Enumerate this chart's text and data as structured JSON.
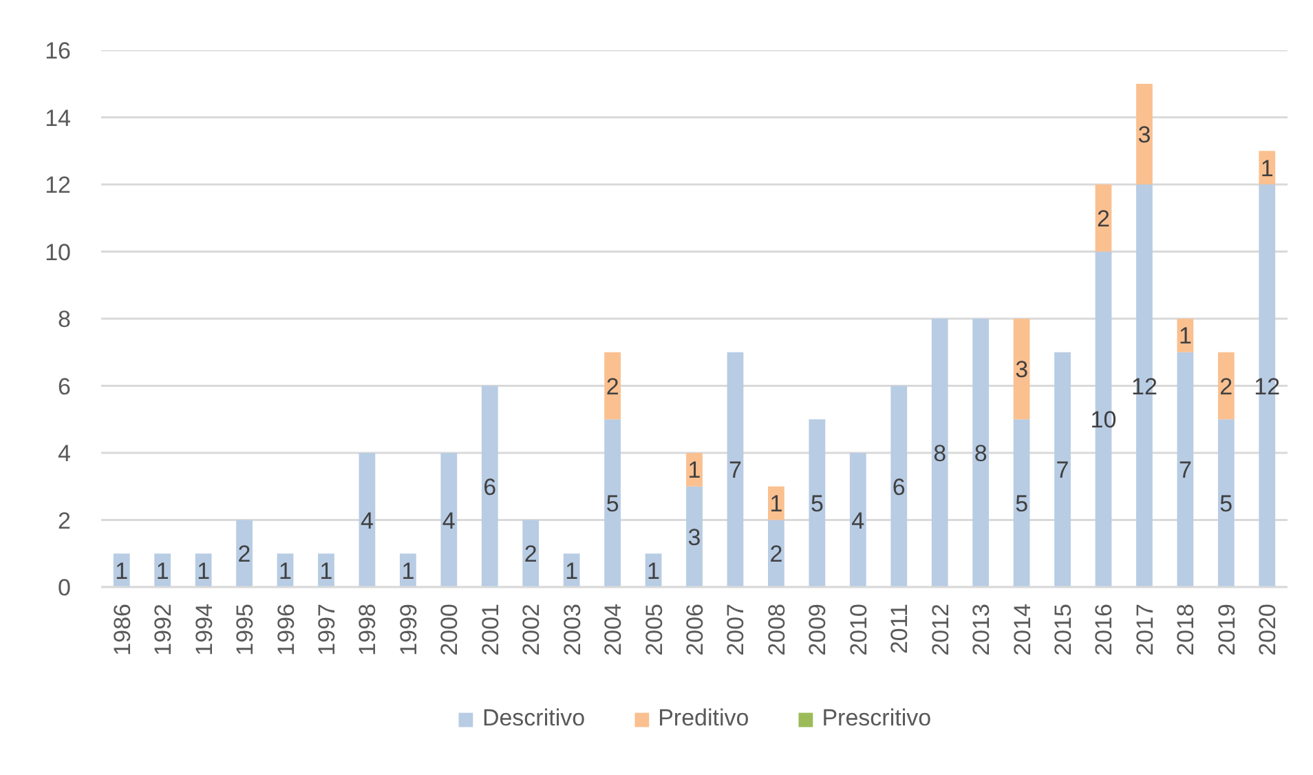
{
  "chart_data": {
    "type": "bar",
    "stacked": true,
    "categories": [
      "1986",
      "1992",
      "1994",
      "1995",
      "1996",
      "1997",
      "1998",
      "1999",
      "2000",
      "2001",
      "2002",
      "2003",
      "2004",
      "2005",
      "2006",
      "2007",
      "2008",
      "2009",
      "2010",
      "2011",
      "2012",
      "2013",
      "2014",
      "2015",
      "2016",
      "2017",
      "2018",
      "2019",
      "2020"
    ],
    "series": [
      {
        "name": "Descritivo",
        "color": "#b8cce4",
        "values": [
          1,
          1,
          1,
          2,
          1,
          1,
          4,
          1,
          4,
          6,
          2,
          1,
          5,
          1,
          3,
          7,
          2,
          5,
          4,
          6,
          8,
          8,
          5,
          7,
          10,
          12,
          7,
          5,
          12
        ]
      },
      {
        "name": "Preditivo",
        "color": "#fac090",
        "values": [
          null,
          null,
          null,
          null,
          null,
          null,
          null,
          null,
          null,
          null,
          null,
          null,
          2,
          null,
          1,
          null,
          1,
          null,
          null,
          null,
          null,
          null,
          3,
          null,
          2,
          3,
          1,
          2,
          1
        ]
      },
      {
        "name": "Prescritivo",
        "color": "#9bbb59",
        "values": [
          null,
          null,
          null,
          null,
          null,
          null,
          null,
          null,
          null,
          null,
          null,
          null,
          null,
          null,
          null,
          null,
          null,
          null,
          null,
          null,
          null,
          null,
          null,
          null,
          null,
          null,
          null,
          null,
          null
        ]
      }
    ],
    "ylim": [
      0,
      16
    ],
    "yticks": [
      0,
      2,
      4,
      6,
      8,
      10,
      12,
      14,
      16
    ],
    "grid": "y",
    "legend": "bottom",
    "data_labels": true
  }
}
